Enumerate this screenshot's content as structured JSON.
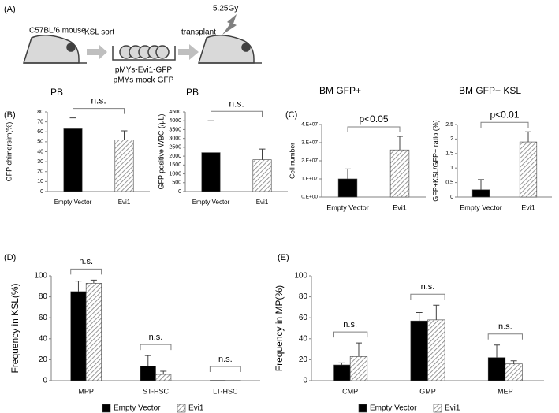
{
  "panel_labels": [
    "(A)",
    "(B)",
    "(C)",
    "(D)",
    "(E)"
  ],
  "diagram": {
    "labels": [
      "C57BL/6 mouse",
      "KSL sort",
      "transplant",
      "5.25Gy",
      "pMYs-Evi1-GFP",
      "pMYs-mock-GFP"
    ]
  },
  "chart_data": [
    {
      "type": "bar",
      "title": "PB",
      "ylabel": "GFP chimersim(%)",
      "categories": [
        "Empty Vector",
        "Evi1"
      ],
      "values": [
        63,
        52
      ],
      "errors": [
        11,
        9
      ],
      "colors": [
        "#000000",
        "#7f7f7f"
      ],
      "patterns": [
        "solid",
        "hatch"
      ],
      "ylim": [
        0,
        80
      ],
      "yticks": [
        0,
        10,
        20,
        30,
        40,
        50,
        60,
        70,
        80
      ],
      "annotation": "n.s."
    },
    {
      "type": "bar",
      "title": "PB",
      "ylabel": "GFP positive WBC (/μL)",
      "categories": [
        "Empty Vector",
        "Evi1"
      ],
      "values": [
        2200,
        1800
      ],
      "errors": [
        1800,
        600
      ],
      "colors": [
        "#000000",
        "#7f7f7f"
      ],
      "patterns": [
        "solid",
        "hatch"
      ],
      "ylim": [
        0,
        4500
      ],
      "yticks": [
        0,
        500,
        1000,
        1500,
        2000,
        2500,
        3000,
        3500,
        4000,
        4500
      ],
      "annotation": "n.s."
    },
    {
      "type": "bar",
      "title": "BM GFP+",
      "ylabel": "Cell number",
      "categories": [
        "Empty Vector",
        "Evi1"
      ],
      "values": [
        10000000,
        26000000
      ],
      "errors": [
        5500000,
        7500000
      ],
      "colors": [
        "#000000",
        "#7f7f7f"
      ],
      "patterns": [
        "solid",
        "hatch"
      ],
      "ylim": [
        0,
        40000000
      ],
      "yticks": [
        {
          "value": 0,
          "label": "0.E+00"
        },
        {
          "value": 10000000,
          "label": "1.E+07"
        },
        {
          "value": 20000000,
          "label": "2.E+07"
        },
        {
          "value": 30000000,
          "label": "3.E+07"
        },
        {
          "value": 40000000,
          "label": "4.E+07"
        }
      ],
      "annotation": "p<0.05"
    },
    {
      "type": "bar",
      "title": "BM GFP+ KSL",
      "ylabel": "GFP+KSL/GFP+ ratio (%)",
      "categories": [
        "Empty Vector",
        "Evi1"
      ],
      "values": [
        0.25,
        1.9
      ],
      "errors": [
        0.35,
        0.35
      ],
      "colors": [
        "#000000",
        "#7f7f7f"
      ],
      "patterns": [
        "solid",
        "hatch"
      ],
      "ylim": [
        0,
        2.5
      ],
      "yticks": [
        0,
        0.5,
        1,
        1.5,
        2,
        2.5
      ],
      "annotation": "p<0.01"
    },
    {
      "type": "grouped-bar",
      "ylabel": "Frequency in KSL(%)",
      "categories": [
        "MPP",
        "ST-HSC",
        "LT-HSC"
      ],
      "series": [
        {
          "name": "Empty Vector",
          "color": "#000000",
          "pattern": "solid",
          "values": [
            85,
            14,
            0.3
          ],
          "errors": [
            10,
            10,
            0
          ]
        },
        {
          "name": "Evi1",
          "color": "#7f7f7f",
          "pattern": "hatch",
          "values": [
            93,
            6,
            0.2
          ],
          "errors": [
            3,
            3,
            0
          ]
        }
      ],
      "ylim": [
        0,
        100
      ],
      "yticks": [
        0,
        20,
        40,
        60,
        80,
        100
      ],
      "annotations": [
        "n.s.",
        "n.s.",
        "n.s."
      ]
    },
    {
      "type": "grouped-bar",
      "ylabel": "Frequency in MP(%)",
      "categories": [
        "CMP",
        "GMP",
        "MEP"
      ],
      "series": [
        {
          "name": "Empty Vector",
          "color": "#000000",
          "pattern": "solid",
          "values": [
            15,
            57,
            22
          ],
          "errors": [
            2,
            8,
            12
          ]
        },
        {
          "name": "Evi1",
          "color": "#7f7f7f",
          "pattern": "hatch",
          "values": [
            23,
            58,
            16
          ],
          "errors": [
            13,
            14,
            3
          ]
        }
      ],
      "ylim": [
        0,
        100
      ],
      "yticks": [
        0,
        20,
        40,
        60,
        80,
        100
      ],
      "annotations": [
        "n.s.",
        "n.s.",
        "n.s."
      ]
    }
  ]
}
